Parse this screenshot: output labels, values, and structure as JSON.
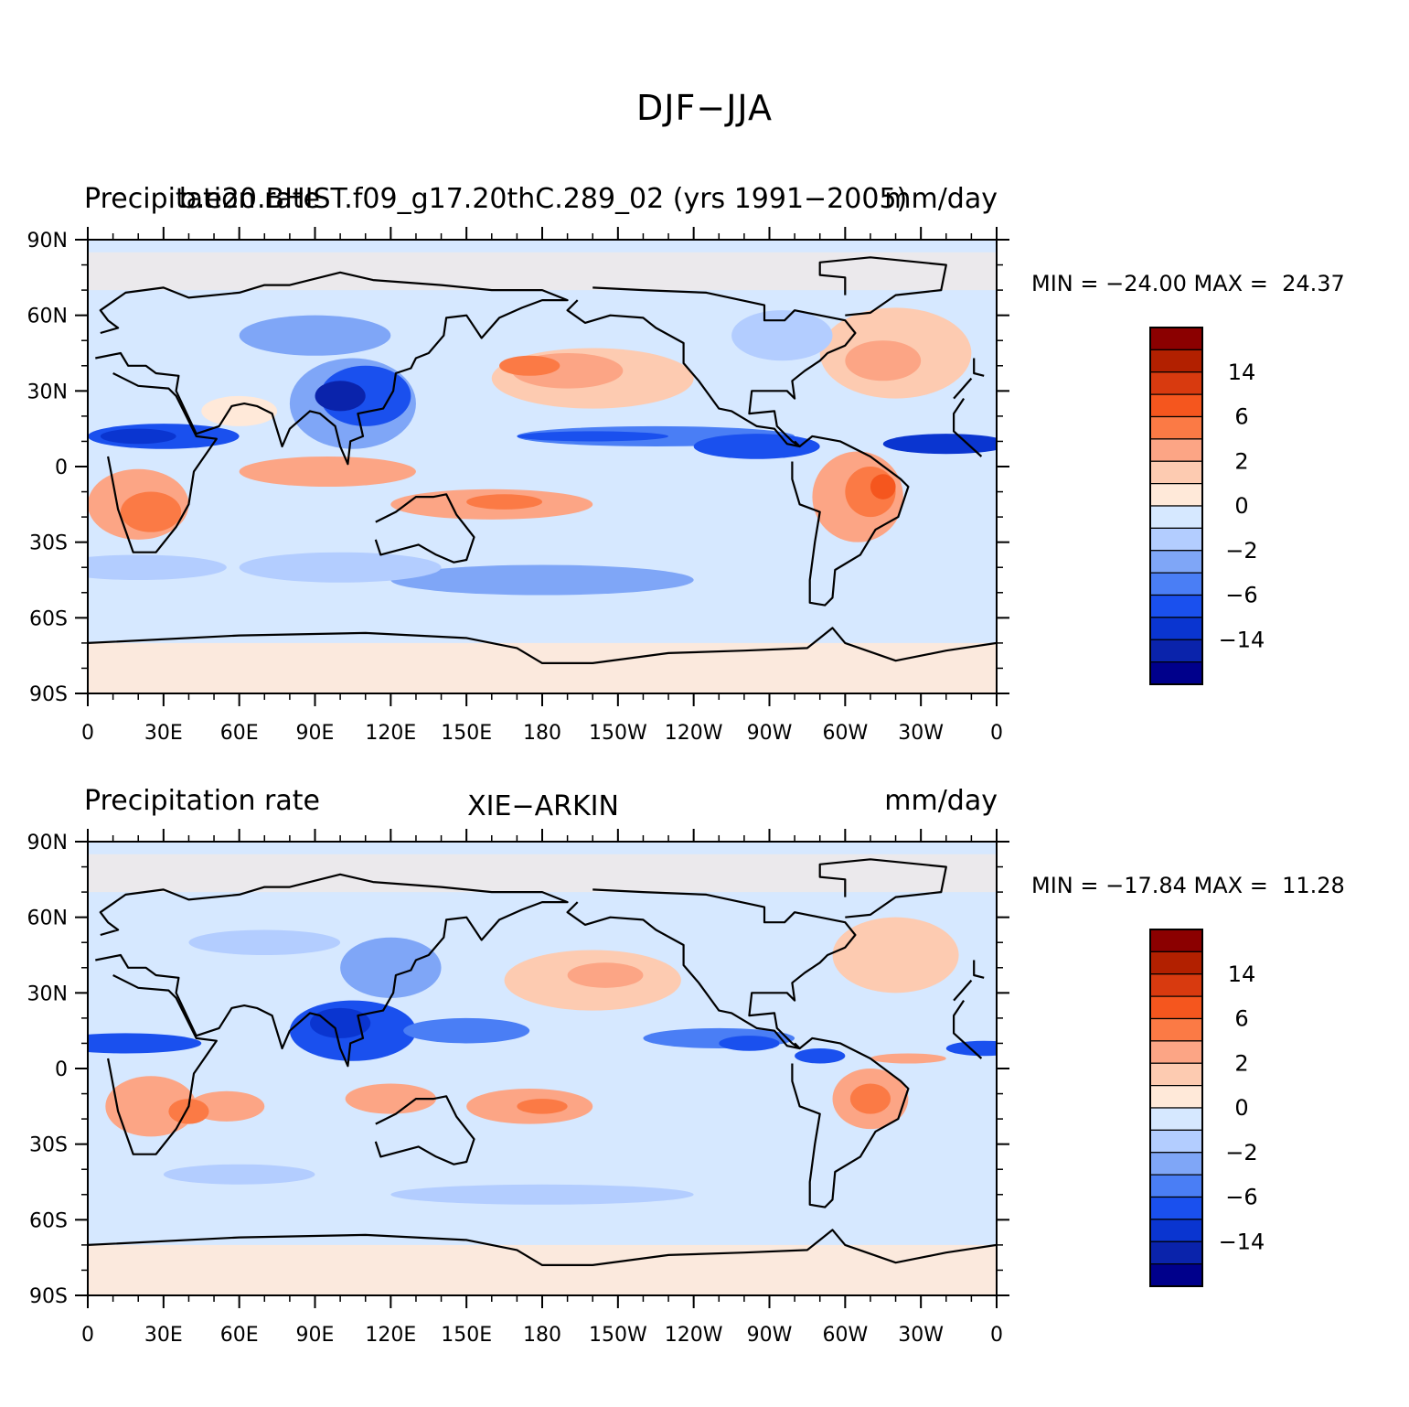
{
  "title": "DJF−JJA",
  "panels": [
    {
      "left_label": "Precipitation rate",
      "center_label": "b.e20.BHIST.f09_g17.20thC.289_02 (yrs 1991−2005)",
      "right_label": "mm/day",
      "minmax": "MIN = −24.00 MAX =  24.37"
    },
    {
      "left_label": "Precipitation rate",
      "center_label": "XIE−ARKIN",
      "right_label": "mm/day",
      "minmax": "MIN = −17.84 MAX =  11.28"
    }
  ],
  "map": {
    "lat_labels": [
      "90N",
      "60N",
      "30N",
      "0",
      "30S",
      "60S",
      "90S"
    ],
    "lon_labels": [
      "0",
      "30E",
      "60E",
      "90E",
      "120E",
      "150E",
      "180",
      "150W",
      "120W",
      "90W",
      "60W",
      "30W",
      "0"
    ],
    "ocean_color": "#d6e8ff"
  },
  "colorbar": {
    "colors": [
      "#8b0000",
      "#b22000",
      "#d83a0f",
      "#f5561e",
      "#fb7a45",
      "#fca585",
      "#fdcbb1",
      "#ffe9d9",
      "#d6e8ff",
      "#b3cdff",
      "#7fa6f7",
      "#4a7ef5",
      "#1a50ee",
      "#0a35d0",
      "#0a23ab",
      "#00008b"
    ],
    "labels": [
      "14",
      "6",
      "2",
      "0",
      "−2",
      "−6",
      "−14"
    ]
  }
}
